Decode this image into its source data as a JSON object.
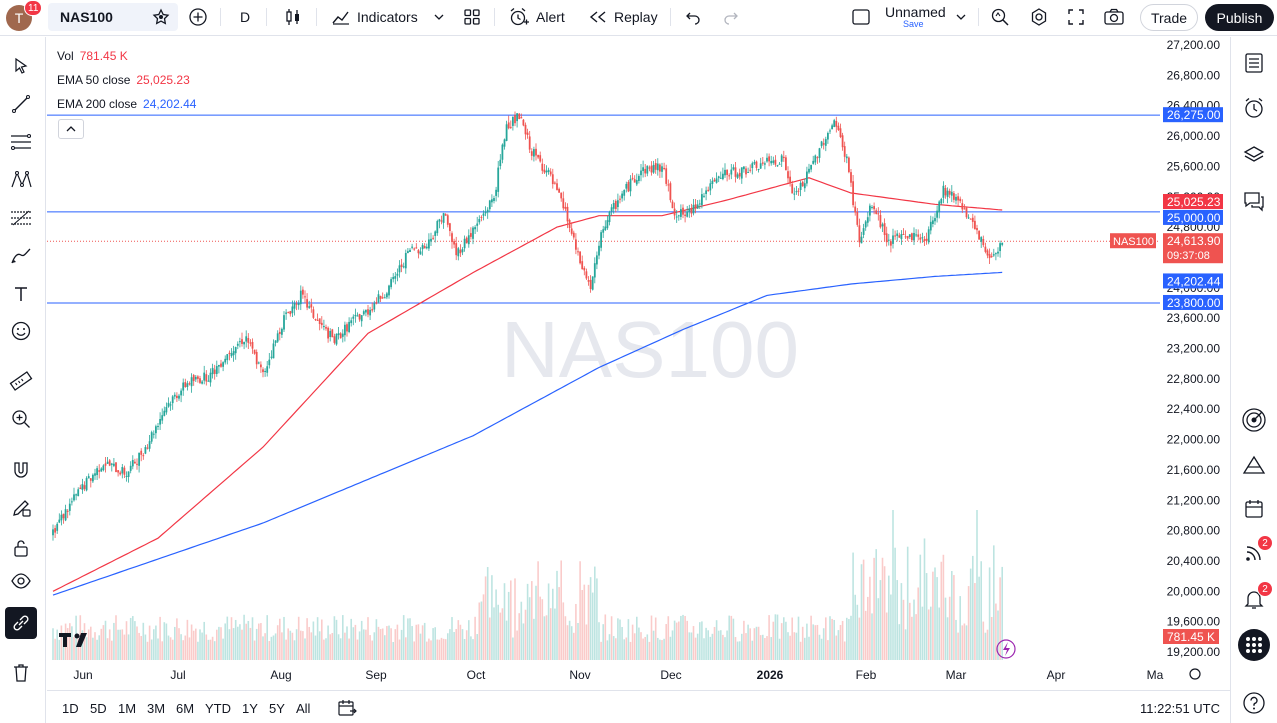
{
  "header": {
    "avatar_letter": "T",
    "avatar_badge": "11",
    "symbol": "NAS100",
    "interval": "D",
    "indicators_label": "Indicators",
    "alert_label": "Alert",
    "replay_label": "Replay",
    "layout_name": "Unnamed",
    "layout_save": "Save",
    "trade_label": "Trade",
    "publish_label": "Publish"
  },
  "legend": {
    "vol_label": "Vol",
    "vol_value": "781.45 K",
    "ema50_label": "EMA 50 close",
    "ema50_value": "25,025.23",
    "ema200_label": "EMA 200 close",
    "ema200_value": "24,202.44"
  },
  "watermark": "NAS100",
  "price_axis": {
    "ticks": [
      "27,200.00",
      "26,800.00",
      "26,400.00",
      "26,000.00",
      "25,600.00",
      "25,200.00",
      "24,800.00",
      "24,400.00",
      "24,000.00",
      "23,600.00",
      "23,200.00",
      "22,800.00",
      "22,400.00",
      "22,000.00",
      "21,600.00",
      "21,200.00",
      "20,800.00",
      "20,400.00",
      "20,000.00",
      "19,600.00",
      "19,200.00"
    ],
    "labels": {
      "hline_top": "26,275.00",
      "ema50": "25,025.23",
      "hline_mid": "25,000.00",
      "last_price": "24,613.90",
      "countdown": "09:37:08",
      "ema200": "24,202.44",
      "hline_low": "23,800.00",
      "volume": "781.45 K",
      "symbol_tag": "NAS100"
    }
  },
  "time_axis": [
    "Jun",
    "Jul",
    "Aug",
    "Sep",
    "Oct",
    "Nov",
    "Dec",
    "2026",
    "Feb",
    "Mar",
    "Apr",
    "Ma"
  ],
  "ranges": [
    "1D",
    "5D",
    "1M",
    "3M",
    "6M",
    "YTD",
    "1Y",
    "5Y",
    "All"
  ],
  "clock": "11:22:51 UTC",
  "right_badges": {
    "streams": "2",
    "notifications": "2"
  },
  "colors": {
    "up": "#26a69a",
    "down": "#ef5350",
    "ema50": "#f23645",
    "ema200": "#2962ff",
    "hline": "#2962ff"
  },
  "chart_data": {
    "type": "candlestick",
    "symbol": "NAS100",
    "interval": "D",
    "x_axis_labels": [
      "Jun",
      "Jul",
      "Aug",
      "Sep",
      "Oct",
      "Nov",
      "Dec",
      "2026",
      "Feb",
      "Mar",
      "Apr",
      "Ma"
    ],
    "ylim": [
      19200,
      27200
    ],
    "horizontal_lines": [
      26275,
      25000,
      23800
    ],
    "last_price": 24613.9,
    "close_path": [
      [
        0,
        20800
      ],
      [
        12,
        21300
      ],
      [
        24,
        21700
      ],
      [
        35,
        21550
      ],
      [
        44,
        21900
      ],
      [
        54,
        22450
      ],
      [
        64,
        22750
      ],
      [
        75,
        22850
      ],
      [
        85,
        23200
      ],
      [
        92,
        23350
      ],
      [
        100,
        22850
      ],
      [
        110,
        23600
      ],
      [
        118,
        23900
      ],
      [
        126,
        23550
      ],
      [
        134,
        23300
      ],
      [
        142,
        23550
      ],
      [
        150,
        23700
      ],
      [
        160,
        24000
      ],
      [
        170,
        24500
      ],
      [
        178,
        24550
      ],
      [
        186,
        25000
      ],
      [
        192,
        24450
      ],
      [
        200,
        24750
      ],
      [
        210,
        25200
      ],
      [
        216,
        26150
      ],
      [
        222,
        26250
      ],
      [
        228,
        25800
      ],
      [
        236,
        25500
      ],
      [
        244,
        25000
      ],
      [
        250,
        24400
      ],
      [
        256,
        24000
      ],
      [
        262,
        24800
      ],
      [
        270,
        25200
      ],
      [
        280,
        25550
      ],
      [
        290,
        25600
      ],
      [
        296,
        25000
      ],
      [
        302,
        24950
      ],
      [
        310,
        25250
      ],
      [
        320,
        25500
      ],
      [
        330,
        25550
      ],
      [
        340,
        25650
      ],
      [
        348,
        25700
      ],
      [
        352,
        25200
      ],
      [
        358,
        25400
      ],
      [
        366,
        25900
      ],
      [
        372,
        26200
      ],
      [
        378,
        25700
      ],
      [
        384,
        24600
      ],
      [
        390,
        25100
      ],
      [
        398,
        24600
      ],
      [
        406,
        24700
      ],
      [
        416,
        24650
      ],
      [
        424,
        25300
      ],
      [
        432,
        25150
      ],
      [
        440,
        24700
      ],
      [
        446,
        24400
      ],
      [
        452,
        24613.9
      ]
    ],
    "ema50_path": [
      [
        0,
        20000
      ],
      [
        50,
        20700
      ],
      [
        100,
        21900
      ],
      [
        150,
        23400
      ],
      [
        200,
        24200
      ],
      [
        240,
        24800
      ],
      [
        260,
        24950
      ],
      [
        290,
        24950
      ],
      [
        320,
        25150
      ],
      [
        360,
        25450
      ],
      [
        380,
        25250
      ],
      [
        420,
        25100
      ],
      [
        452,
        25025.23
      ]
    ],
    "ema200_path": [
      [
        0,
        19950
      ],
      [
        100,
        20900
      ],
      [
        200,
        22050
      ],
      [
        260,
        22950
      ],
      [
        300,
        23450
      ],
      [
        340,
        23900
      ],
      [
        380,
        24050
      ],
      [
        420,
        24150
      ],
      [
        452,
        24202.44
      ]
    ],
    "volume_label": "781.45 K"
  }
}
